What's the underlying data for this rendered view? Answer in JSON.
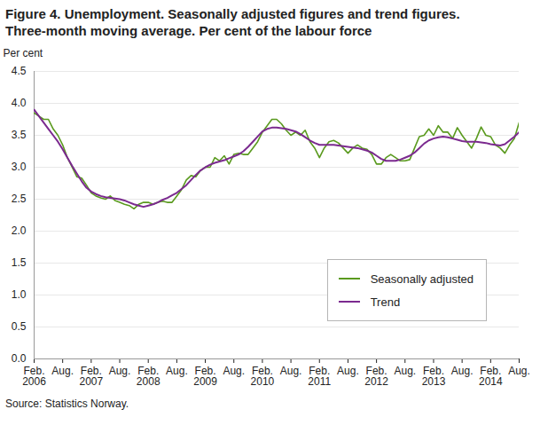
{
  "chart_data": {
    "type": "line",
    "title": "Figure 4. Unemployment. Seasonally adjusted figures and trend figures.\nThree-month moving average. Per cent of the labour force",
    "y_label": "Per cent",
    "caption": "Source: Statistics Norway.",
    "categories": [
      "Feb.\n2006",
      null,
      null,
      null,
      null,
      null,
      "Aug.",
      null,
      null,
      null,
      null,
      null,
      "Feb.\n2007",
      null,
      null,
      null,
      null,
      null,
      "Aug.",
      null,
      null,
      null,
      null,
      null,
      "Feb.\n2008",
      null,
      null,
      null,
      null,
      null,
      "Aug.",
      null,
      null,
      null,
      null,
      null,
      "Feb.\n2009",
      null,
      null,
      null,
      null,
      null,
      "Aug.",
      null,
      null,
      null,
      null,
      null,
      "Feb.\n2010",
      null,
      null,
      null,
      null,
      null,
      "Aug.",
      null,
      null,
      null,
      null,
      null,
      "Feb.\n2011",
      null,
      null,
      null,
      null,
      null,
      "Aug.",
      null,
      null,
      null,
      null,
      null,
      "Feb.\n2012",
      null,
      null,
      null,
      null,
      null,
      "Aug.",
      null,
      null,
      null,
      null,
      null,
      "Feb.\n2013",
      null,
      null,
      null,
      null,
      null,
      "Aug.",
      null,
      null,
      null,
      null,
      null,
      "Feb.\n2014",
      null,
      null,
      null,
      null,
      null,
      "Aug."
    ],
    "series": [
      {
        "name": "Seasonally adjusted",
        "color": "#5a9a1e",
        "values": [
          3.85,
          3.8,
          3.75,
          3.75,
          3.6,
          3.5,
          3.35,
          3.15,
          3.0,
          2.85,
          2.83,
          2.72,
          2.6,
          2.55,
          2.52,
          2.5,
          2.55,
          2.48,
          2.45,
          2.42,
          2.4,
          2.35,
          2.42,
          2.45,
          2.45,
          2.42,
          2.45,
          2.47,
          2.45,
          2.45,
          2.55,
          2.65,
          2.8,
          2.87,
          2.85,
          2.95,
          3.0,
          3.0,
          3.15,
          3.1,
          3.18,
          3.05,
          3.2,
          3.22,
          3.2,
          3.2,
          3.3,
          3.4,
          3.55,
          3.65,
          3.75,
          3.75,
          3.68,
          3.58,
          3.5,
          3.55,
          3.5,
          3.58,
          3.4,
          3.3,
          3.15,
          3.3,
          3.4,
          3.42,
          3.38,
          3.3,
          3.22,
          3.3,
          3.35,
          3.3,
          3.28,
          3.2,
          3.05,
          3.05,
          3.15,
          3.2,
          3.15,
          3.1,
          3.1,
          3.12,
          3.3,
          3.48,
          3.5,
          3.6,
          3.5,
          3.65,
          3.55,
          3.55,
          3.45,
          3.62,
          3.5,
          3.4,
          3.3,
          3.45,
          3.63,
          3.5,
          3.48,
          3.35,
          3.3,
          3.22,
          3.35,
          3.45,
          3.7
        ]
      },
      {
        "name": "Trend",
        "color": "#7b2a8f",
        "values": [
          3.9,
          3.8,
          3.7,
          3.6,
          3.5,
          3.4,
          3.28,
          3.15,
          3.02,
          2.9,
          2.78,
          2.68,
          2.62,
          2.58,
          2.55,
          2.53,
          2.52,
          2.51,
          2.5,
          2.48,
          2.45,
          2.42,
          2.4,
          2.38,
          2.4,
          2.42,
          2.45,
          2.49,
          2.52,
          2.56,
          2.6,
          2.66,
          2.72,
          2.8,
          2.88,
          2.95,
          3.0,
          3.04,
          3.07,
          3.09,
          3.11,
          3.14,
          3.17,
          3.2,
          3.25,
          3.32,
          3.4,
          3.48,
          3.56,
          3.6,
          3.62,
          3.62,
          3.61,
          3.6,
          3.58,
          3.56,
          3.52,
          3.47,
          3.42,
          3.38,
          3.35,
          3.35,
          3.35,
          3.35,
          3.34,
          3.33,
          3.32,
          3.31,
          3.3,
          3.28,
          3.26,
          3.23,
          3.18,
          3.13,
          3.1,
          3.1,
          3.1,
          3.12,
          3.15,
          3.18,
          3.23,
          3.3,
          3.37,
          3.42,
          3.45,
          3.47,
          3.48,
          3.47,
          3.45,
          3.43,
          3.41,
          3.4,
          3.4,
          3.4,
          3.39,
          3.38,
          3.36,
          3.35,
          3.34,
          3.36,
          3.42,
          3.48,
          3.55
        ]
      }
    ],
    "ylim": [
      0,
      4.5
    ],
    "yticks": [
      {
        "value": 0,
        "label": "0.0"
      },
      {
        "value": 0.5,
        "label": "0.5"
      },
      {
        "value": 1,
        "label": "1.0"
      },
      {
        "value": 1.5,
        "label": "1.5"
      },
      {
        "value": 2,
        "label": "2.0"
      },
      {
        "value": 2.5,
        "label": "2.5"
      },
      {
        "value": 3,
        "label": "3.0"
      },
      {
        "value": 3.5,
        "label": "3.5"
      },
      {
        "value": 4,
        "label": "4.0"
      },
      {
        "value": 4.5,
        "label": "4.5"
      }
    ],
    "grid": true,
    "legend": "lower right"
  }
}
